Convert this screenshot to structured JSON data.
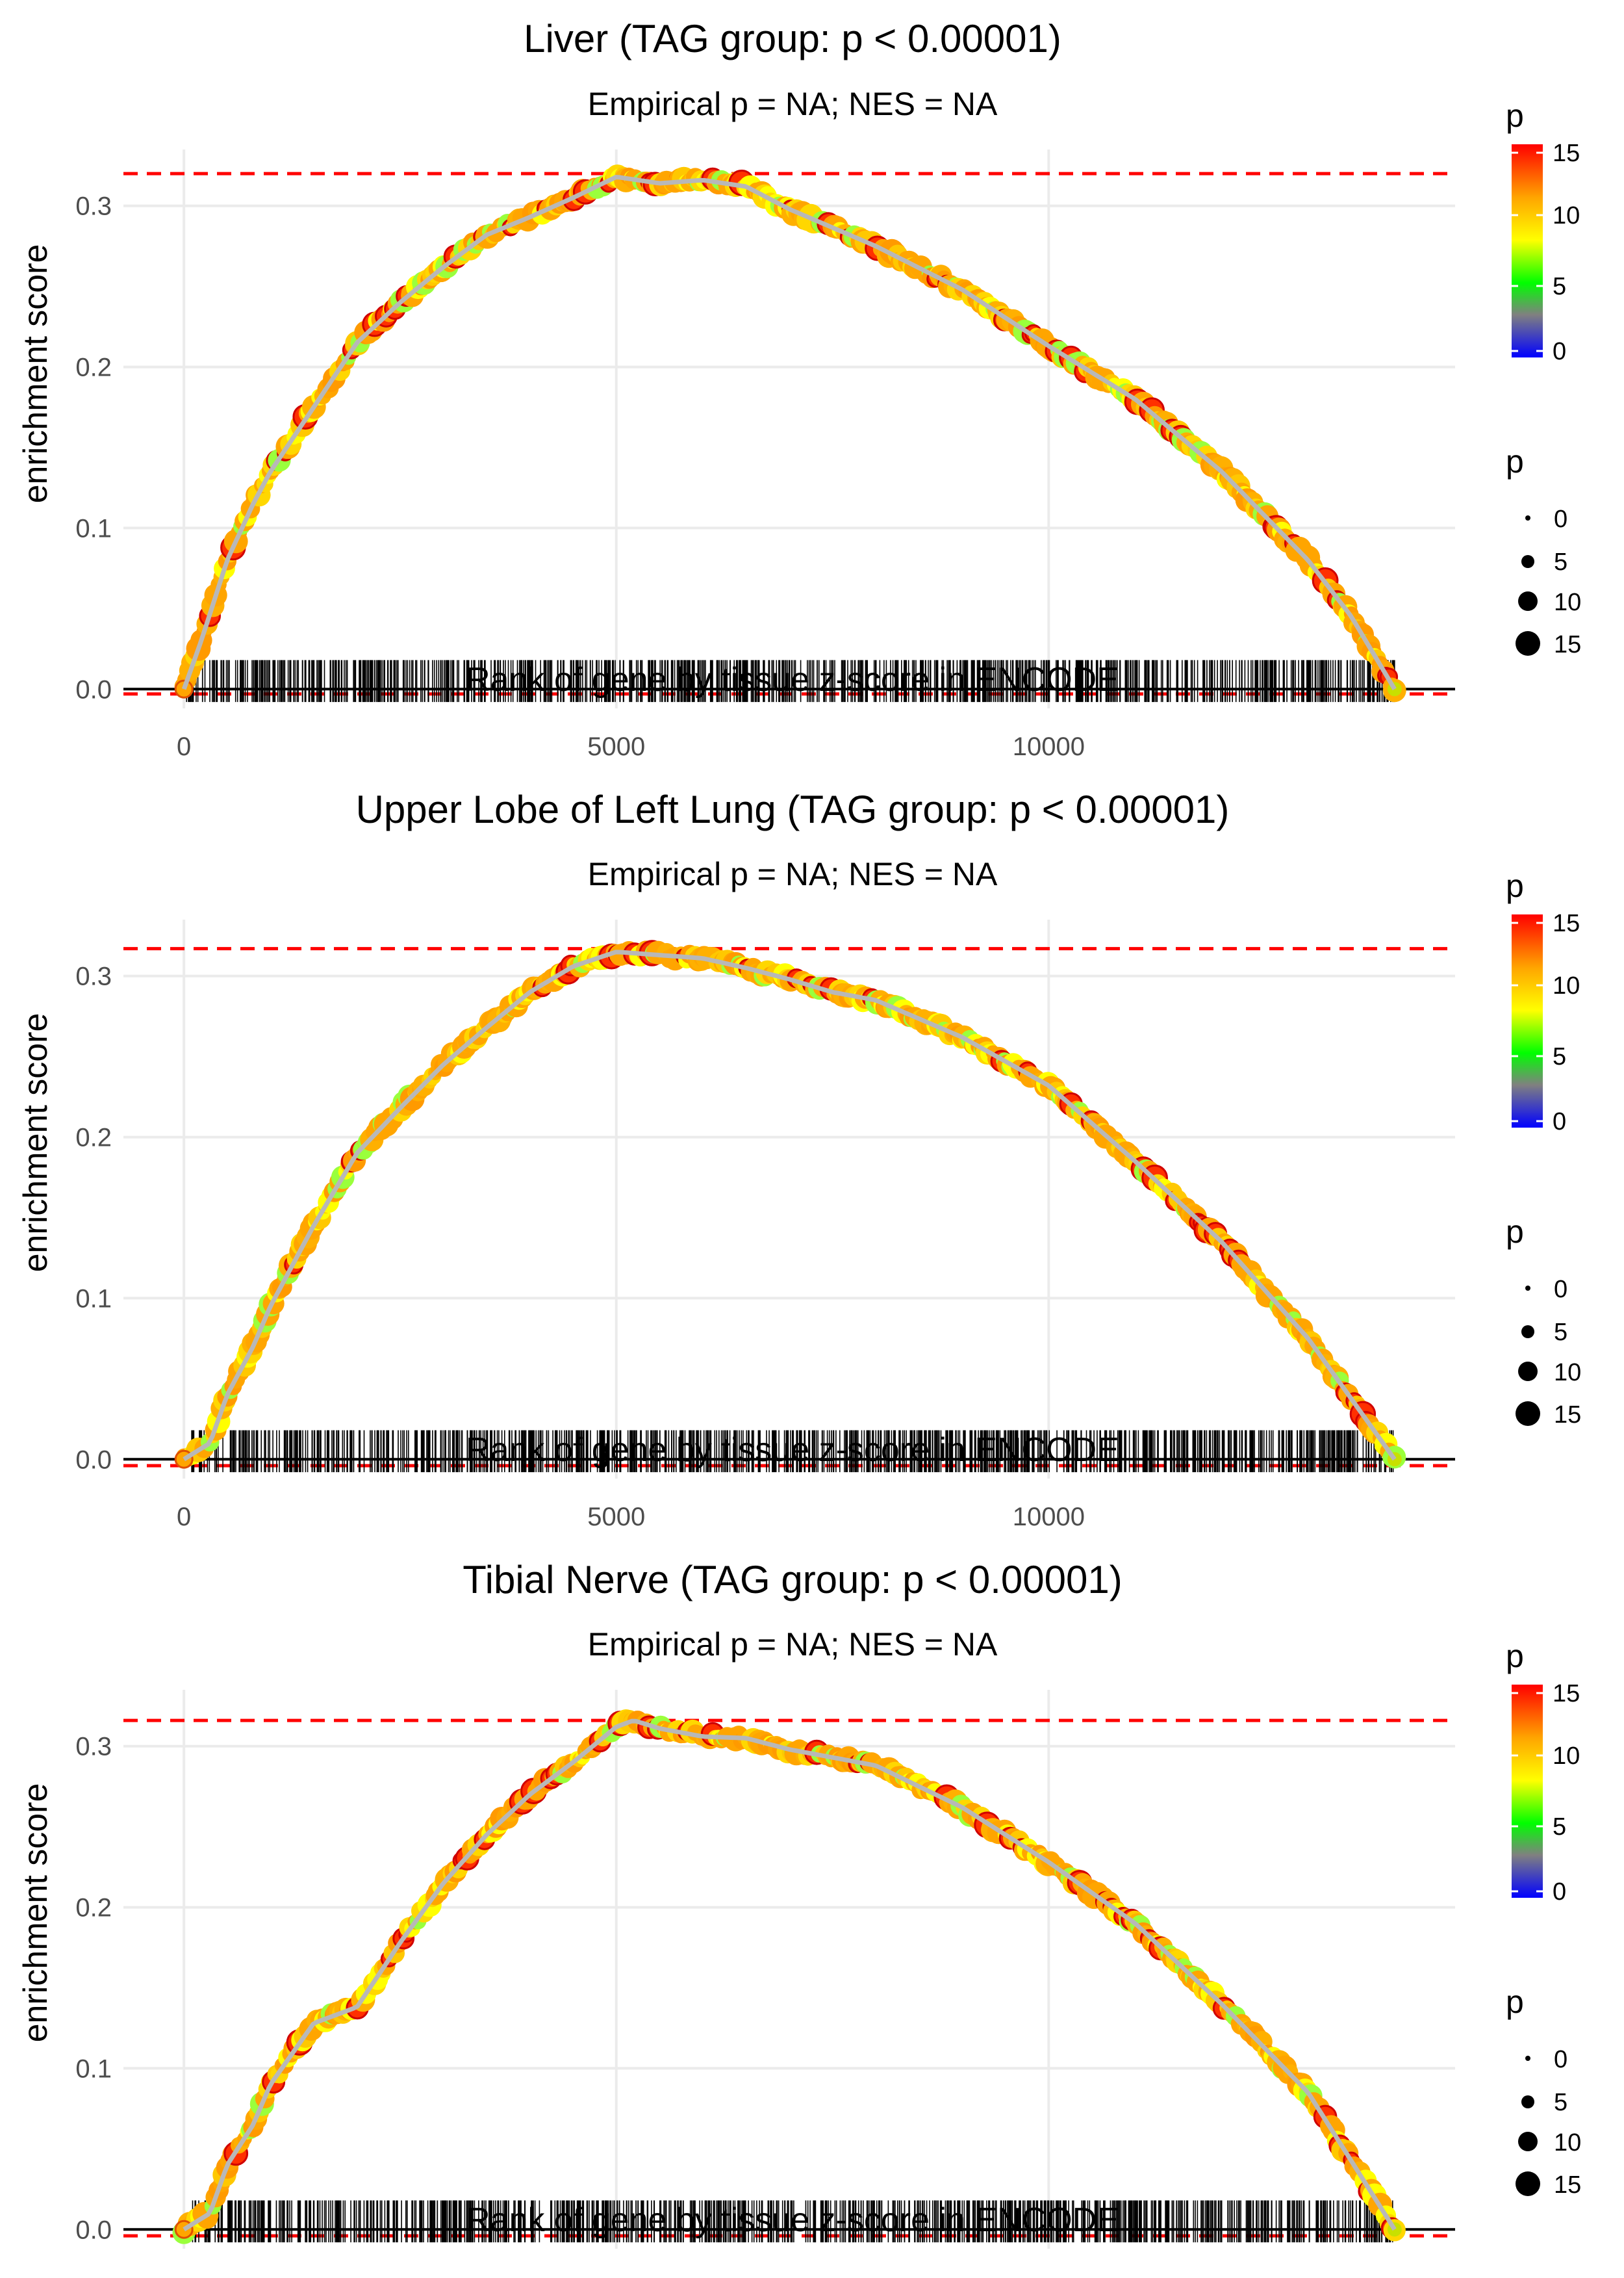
{
  "legend": {
    "color_title": "p",
    "color_ticks": [
      "15",
      "10",
      "5",
      "0"
    ],
    "colors": {
      "low": "#0000ff",
      "mid_low": "#808080",
      "mid": "#00ff00",
      "mid_high": "#ffff00",
      "high_mid": "#ffa500",
      "high": "#ff0000"
    },
    "size_title": "p",
    "size_labels": [
      "0",
      "5",
      "10",
      "15"
    ]
  },
  "chart_data": [
    {
      "type": "line",
      "title": "Liver (TAG group: p < 0.00001)",
      "subtitle": "Empirical p = NA; NES = NA",
      "xlabel": "Rank of gene by tissue z-score in ENCODE",
      "ylabel": "enrichment score",
      "xlim": [
        -700,
        14700
      ],
      "ylim": [
        -0.012,
        0.335
      ],
      "x_ticks": [
        0,
        5000,
        10000
      ],
      "x_tick_labels": [
        "0",
        "5000",
        "10000"
      ],
      "y_ticks": [
        0.0,
        0.1,
        0.2,
        0.3
      ],
      "y_tick_labels": [
        "0.0",
        "0.1",
        "0.2",
        "0.3"
      ],
      "max_es": 0.32,
      "min_es": -0.003,
      "x_max": 14000,
      "hit_range": [
        30,
        14000
      ],
      "curve": {
        "x": [
          0,
          200,
          500,
          800,
          1000,
          1500,
          2000,
          2500,
          3000,
          3500,
          4000,
          4500,
          5000,
          5500,
          6000,
          6500,
          7000,
          8000,
          9000,
          10000,
          11000,
          12000,
          13000,
          13500,
          14000
        ],
        "y": [
          0.0,
          0.03,
          0.08,
          0.115,
          0.135,
          0.175,
          0.215,
          0.24,
          0.262,
          0.282,
          0.293,
          0.305,
          0.318,
          0.314,
          0.316,
          0.312,
          0.298,
          0.275,
          0.248,
          0.213,
          0.18,
          0.135,
          0.08,
          0.045,
          0.0
        ]
      }
    },
    {
      "type": "line",
      "title": "Upper Lobe of Left Lung (TAG group: p < 0.00001)",
      "subtitle": "Empirical p = NA; NES = NA",
      "xlabel": "Rank of gene by tissue z-score in ENCODE",
      "ylabel": "enrichment score",
      "xlim": [
        -700,
        14700
      ],
      "ylim": [
        -0.012,
        0.335
      ],
      "x_ticks": [
        0,
        5000,
        10000
      ],
      "x_tick_labels": [
        "0",
        "5000",
        "10000"
      ],
      "y_ticks": [
        0.0,
        0.1,
        0.2,
        0.3
      ],
      "y_tick_labels": [
        "0.0",
        "0.1",
        "0.2",
        "0.3"
      ],
      "max_es": 0.317,
      "min_es": -0.004,
      "x_max": 14000,
      "hit_range": [
        40,
        14000
      ],
      "curve": {
        "x": [
          0,
          300,
          500,
          800,
          1000,
          1500,
          2000,
          2500,
          3000,
          3500,
          4000,
          4500,
          5000,
          5500,
          6000,
          6500,
          7000,
          7500,
          8000,
          9000,
          10000,
          11000,
          12000,
          13000,
          14000
        ],
        "y": [
          0.0,
          0.01,
          0.04,
          0.07,
          0.095,
          0.145,
          0.19,
          0.218,
          0.245,
          0.268,
          0.29,
          0.306,
          0.315,
          0.313,
          0.311,
          0.305,
          0.298,
          0.29,
          0.285,
          0.262,
          0.232,
          0.185,
          0.135,
          0.075,
          0.0
        ]
      }
    },
    {
      "type": "line",
      "title": "Tibial Nerve (TAG group: p < 0.00001)",
      "subtitle": "Empirical p = NA; NES = NA",
      "xlabel": "Rank of gene by tissue z-score in ENCODE",
      "ylabel": "enrichment score",
      "xlim": [
        -700,
        14700
      ],
      "ylim": [
        -0.012,
        0.335
      ],
      "x_ticks": [
        0,
        5000,
        10000
      ],
      "x_tick_labels": [
        "0",
        "5000",
        "10000"
      ],
      "y_ticks": [
        0.0,
        0.1,
        0.2,
        0.3
      ],
      "y_tick_labels": [
        "0.0",
        "0.1",
        "0.2",
        "0.3"
      ],
      "max_es": 0.316,
      "min_es": -0.004,
      "x_max": 14000,
      "hit_range": [
        40,
        14000
      ],
      "curve": {
        "x": [
          0,
          300,
          500,
          800,
          1000,
          1500,
          2000,
          2500,
          3000,
          3500,
          4000,
          4500,
          5000,
          5200,
          5500,
          6000,
          6500,
          7000,
          8000,
          9000,
          10000,
          11000,
          12000,
          13000,
          14000
        ],
        "y": [
          0.0,
          0.01,
          0.04,
          0.065,
          0.09,
          0.128,
          0.138,
          0.178,
          0.215,
          0.245,
          0.27,
          0.29,
          0.312,
          0.316,
          0.311,
          0.306,
          0.305,
          0.298,
          0.288,
          0.262,
          0.228,
          0.19,
          0.14,
          0.085,
          0.0
        ]
      }
    }
  ]
}
